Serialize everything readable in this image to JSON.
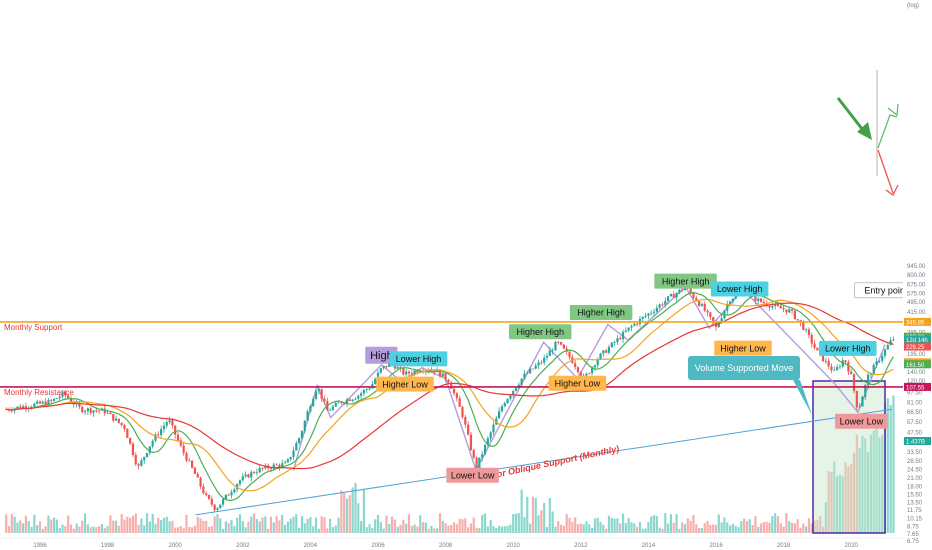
{
  "chart_data": {
    "type": "candlestick",
    "timeframe": "monthly",
    "scale": "log",
    "grid": false,
    "x_tick_labels": [
      "1996",
      "1998",
      "2000",
      "2002",
      "2004",
      "2006",
      "2008",
      "2010",
      "2012",
      "2014",
      "2016",
      "2018",
      "2020"
    ],
    "y_tick_labels": [
      "6.75",
      "7.65",
      "8.75",
      "10.15",
      "11.75",
      "13.50",
      "15.50",
      "18.00",
      "21.00",
      "24.50",
      "28.50",
      "33.50",
      "39.50",
      "47.50",
      "57.50",
      "68.50",
      "81.00",
      "97.50",
      "120.00",
      "140.00",
      "165.00",
      "195.00",
      "235.00",
      "285.00",
      "345.00",
      "415.00",
      "495.00",
      "575.00",
      "675.00",
      "800.00",
      "945.00"
    ],
    "y_unit_label": "(log)",
    "price_labels": [
      {
        "text": "345.85",
        "color": "#f7a21b"
      },
      {
        "text": "260.30",
        "color": "#4caf50"
      },
      {
        "text": "12d 14h",
        "color": "#26a69a"
      },
      {
        "text": "226.25",
        "color": "#ef5350"
      },
      {
        "text": "167.45",
        "color": "#f7a21b"
      },
      {
        "text": "161.50",
        "color": "#4caf50"
      },
      {
        "text": "107.55",
        "color": "#c2185b"
      },
      {
        "text": "1.437B",
        "color": "#26a69a"
      }
    ],
    "monthly_close_anchors": [
      {
        "t": 1995.0,
        "v": 72
      },
      {
        "t": 1996.3,
        "v": 82
      },
      {
        "t": 1996.7,
        "v": 95
      },
      {
        "t": 1997.2,
        "v": 72
      },
      {
        "t": 1997.9,
        "v": 70
      },
      {
        "t": 1998.5,
        "v": 52
      },
      {
        "t": 1998.9,
        "v": 25
      },
      {
        "t": 1999.3,
        "v": 40
      },
      {
        "t": 1999.8,
        "v": 60
      },
      {
        "t": 2000.2,
        "v": 35
      },
      {
        "t": 2000.6,
        "v": 22
      },
      {
        "t": 2000.9,
        "v": 15
      },
      {
        "t": 2001.2,
        "v": 12
      },
      {
        "t": 2001.6,
        "v": 16
      },
      {
        "t": 2001.9,
        "v": 20
      },
      {
        "t": 2002.4,
        "v": 24
      },
      {
        "t": 2002.9,
        "v": 26
      },
      {
        "t": 2003.3,
        "v": 27
      },
      {
        "t": 2003.7,
        "v": 45
      },
      {
        "t": 2004.0,
        "v": 80
      },
      {
        "t": 2004.2,
        "v": 110
      },
      {
        "t": 2004.5,
        "v": 70
      },
      {
        "t": 2004.9,
        "v": 82
      },
      {
        "t": 2005.4,
        "v": 92
      },
      {
        "t": 2005.8,
        "v": 110
      },
      {
        "t": 2006.1,
        "v": 150
      },
      {
        "t": 2006.4,
        "v": 165
      },
      {
        "t": 2006.8,
        "v": 135
      },
      {
        "t": 2007.3,
        "v": 150
      },
      {
        "t": 2007.7,
        "v": 145
      },
      {
        "t": 2008.1,
        "v": 120
      },
      {
        "t": 2008.5,
        "v": 65
      },
      {
        "t": 2008.9,
        "v": 25
      },
      {
        "t": 2009.3,
        "v": 45
      },
      {
        "t": 2009.7,
        "v": 80
      },
      {
        "t": 2010.3,
        "v": 130
      },
      {
        "t": 2010.9,
        "v": 175
      },
      {
        "t": 2011.3,
        "v": 240
      },
      {
        "t": 2011.7,
        "v": 180
      },
      {
        "t": 2012.1,
        "v": 125
      },
      {
        "t": 2012.5,
        "v": 180
      },
      {
        "t": 2013.0,
        "v": 240
      },
      {
        "t": 2013.5,
        "v": 320
      },
      {
        "t": 2014.0,
        "v": 400
      },
      {
        "t": 2014.6,
        "v": 530
      },
      {
        "t": 2015.1,
        "v": 650
      },
      {
        "t": 2015.6,
        "v": 450
      },
      {
        "t": 2016.0,
        "v": 310
      },
      {
        "t": 2016.4,
        "v": 520
      },
      {
        "t": 2016.8,
        "v": 600
      },
      {
        "t": 2017.3,
        "v": 500
      },
      {
        "t": 2017.8,
        "v": 450
      },
      {
        "t": 2018.2,
        "v": 420
      },
      {
        "t": 2018.6,
        "v": 310
      },
      {
        "t": 2019.0,
        "v": 200
      },
      {
        "t": 2019.5,
        "v": 140
      },
      {
        "t": 2019.8,
        "v": 180
      },
      {
        "t": 2020.0,
        "v": 130
      },
      {
        "t": 2020.2,
        "v": 70
      },
      {
        "t": 2020.5,
        "v": 130
      },
      {
        "t": 2020.9,
        "v": 190
      },
      {
        "t": 2021.2,
        "v": 250
      },
      {
        "t": 2021.3,
        "v": 260
      }
    ],
    "horizontal_lines": [
      {
        "label": "Monthly Support",
        "value": 345.85,
        "color": "#f7a21b"
      },
      {
        "label": "Monthly Resistance",
        "value": 107.55,
        "color": "#c2185b"
      }
    ],
    "trendline": {
      "label": "Major Oblique Support (Monthly)",
      "from": {
        "t": 2000.6,
        "v": 10.8
      },
      "to": {
        "t": 2021.2,
        "v": 72
      },
      "color": "#4fa3d9"
    },
    "annotations": [
      {
        "text": "High",
        "t": 2006.1,
        "v": 190,
        "bg": "#b39ddb"
      },
      {
        "text": "Lower High",
        "t": 2007.2,
        "v": 178,
        "bg": "#4dd0e1"
      },
      {
        "text": "Higher Low",
        "t": 2006.8,
        "v": 113,
        "bg": "#ffb74d"
      },
      {
        "text": "Lower Low",
        "t": 2008.8,
        "v": 22,
        "bg": "#ef9a9a"
      },
      {
        "text": "Higher High",
        "t": 2010.8,
        "v": 290,
        "bg": "#81c784"
      },
      {
        "text": "Higher High",
        "t": 2012.6,
        "v": 410,
        "bg": "#81c784"
      },
      {
        "text": "Higher High",
        "t": 2015.1,
        "v": 720,
        "bg": "#81c784"
      },
      {
        "text": "Lower High",
        "t": 2016.7,
        "v": 625,
        "bg": "#4dd0e1"
      },
      {
        "text": "Higher Low",
        "t": 2011.9,
        "v": 115,
        "bg": "#ffb74d"
      },
      {
        "text": "Higher Low",
        "t": 2016.8,
        "v": 216,
        "bg": "#ffb74d"
      },
      {
        "text": "Lower High",
        "t": 2019.9,
        "v": 215,
        "bg": "#4dd0e1"
      },
      {
        "text": "Lower Low",
        "t": 2020.3,
        "v": 58,
        "bg": "#ef9a9a"
      },
      {
        "text": "Entry point?",
        "t": 2021.1,
        "v": 610,
        "bg": "#ffffff"
      }
    ],
    "callout": {
      "text": "Volume Supported Move",
      "bg": "#4fb9c3"
    },
    "moving_averages": [
      {
        "color": "#4caf50",
        "period": 10
      },
      {
        "color": "#f7a21b",
        "period": 20
      },
      {
        "color": "#e53935",
        "period": 50
      }
    ]
  }
}
